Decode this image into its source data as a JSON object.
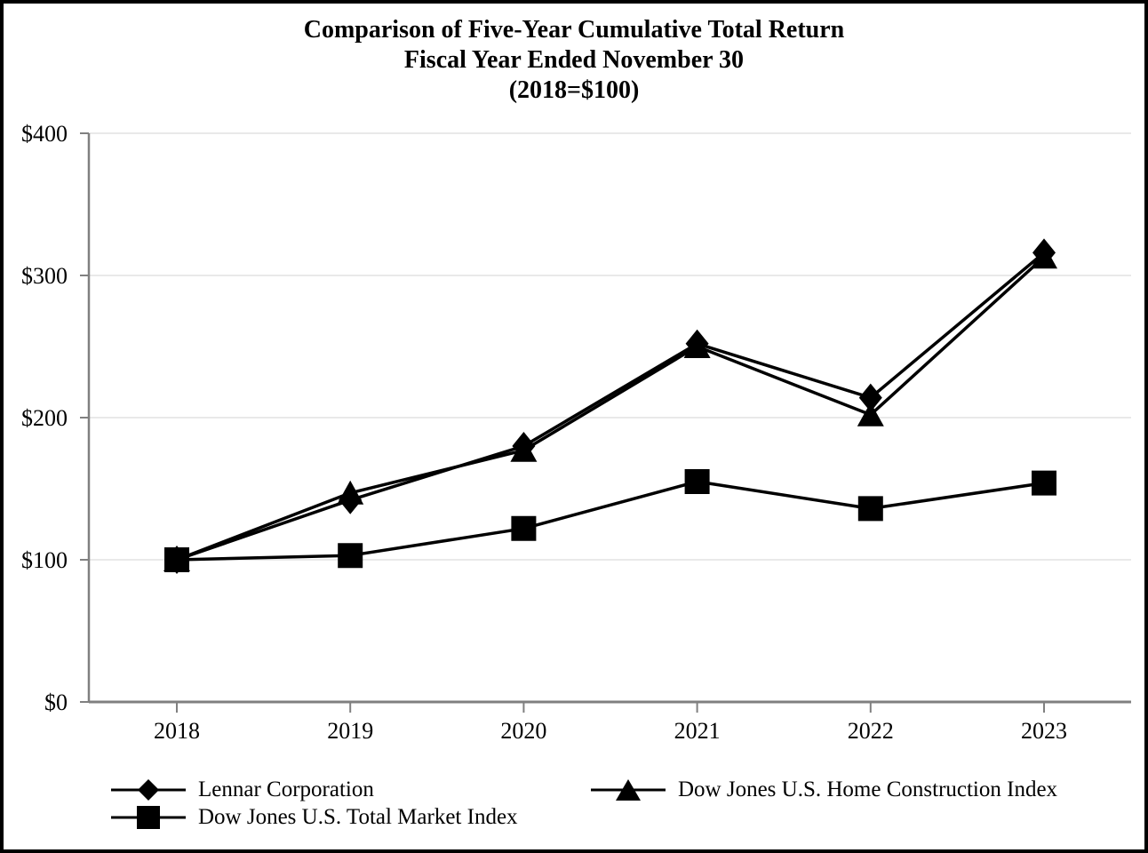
{
  "title": {
    "line1": "Comparison of Five-Year Cumulative Total Return",
    "line2": "Fiscal Year Ended November 30",
    "line3": "(2018=$100)"
  },
  "chart_data": {
    "type": "line",
    "x": [
      2018,
      2019,
      2020,
      2021,
      2022,
      2023
    ],
    "x_tick_labels": [
      "2018",
      "2019",
      "2020",
      "2021",
      "2022",
      "2023"
    ],
    "y_ticks": [
      0,
      100,
      200,
      300,
      400
    ],
    "y_tick_labels": [
      "$0",
      "$100",
      "$200",
      "$300",
      "$400"
    ],
    "ylim": [
      0,
      400
    ],
    "grid": true,
    "legend_position": "bottom",
    "title": "Comparison of Five-Year Cumulative Total Return Fiscal Year Ended November 30 (2018=$100)",
    "series": [
      {
        "name": "Dow Jones U.S. Home Construction Index",
        "marker": "triangle",
        "values": [
          100,
          147,
          177,
          250,
          202,
          313
        ]
      },
      {
        "name": "Lennar Corporation",
        "marker": "diamond",
        "values": [
          100,
          142,
          180,
          252,
          214,
          316
        ]
      },
      {
        "name": "Dow Jones U.S. Total Market Index",
        "marker": "square",
        "values": [
          100,
          103,
          122,
          155,
          136,
          154
        ]
      }
    ],
    "line_color": "#000000",
    "marker_color": "#000000",
    "axis_color": "#808080",
    "grid_color": "#e9e9e9",
    "text_color": "#000000"
  },
  "legend": {
    "columns": [
      [
        {
          "marker": "diamond",
          "label": "Lennar Corporation"
        },
        {
          "marker": "square",
          "label": "Dow Jones U.S. Total Market Index"
        }
      ],
      [
        {
          "marker": "triangle",
          "label": "Dow Jones U.S. Home Construction Index"
        }
      ]
    ]
  }
}
